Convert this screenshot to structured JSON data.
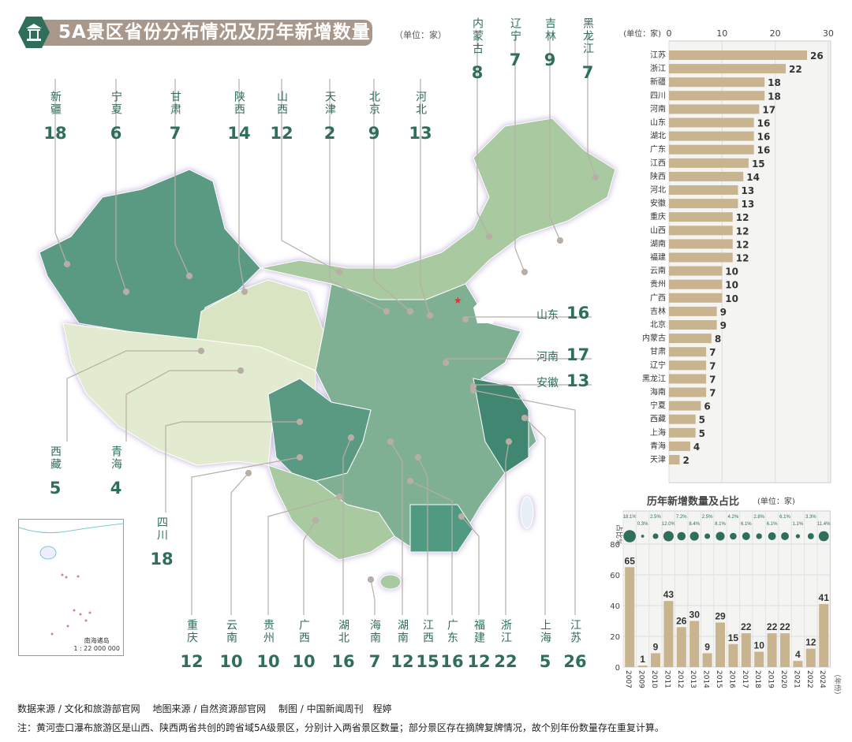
{
  "title": "5A景区省份分布情况及历年新增数量",
  "unit": "（单位：家）",
  "colors": {
    "accent": "#2f6e5a",
    "banner": "#a8978b",
    "bar": "#c9b490",
    "map_dark": "#3f8670",
    "map_mid": "#7fb094",
    "map_light": "#a9c9a0",
    "map_pale": "#e2ead0"
  },
  "map": {
    "top_labels": [
      {
        "name": "新疆",
        "value": "18"
      },
      {
        "name": "宁夏",
        "value": "6"
      },
      {
        "name": "甘肃",
        "value": "7"
      },
      {
        "name": "陕西",
        "value": "14"
      },
      {
        "name": "山西",
        "value": "12"
      },
      {
        "name": "天津",
        "value": "2"
      },
      {
        "name": "北京",
        "value": "9"
      },
      {
        "name": "河北",
        "value": "13"
      }
    ],
    "ne_labels": [
      {
        "name": "内蒙古",
        "value": "8"
      },
      {
        "name": "辽宁",
        "value": "7"
      },
      {
        "name": "吉林",
        "value": "9"
      },
      {
        "name": "黑龙江",
        "value": "7"
      }
    ],
    "right_labels": [
      {
        "name": "山东",
        "value": "16"
      },
      {
        "name": "河南",
        "value": "17"
      },
      {
        "name": "安徽",
        "value": "13"
      }
    ],
    "left_labels": [
      {
        "name": "西藏",
        "value": "5"
      },
      {
        "name": "青海",
        "value": "4"
      },
      {
        "name": "四川",
        "value": "18"
      }
    ],
    "bottom_labels": [
      {
        "name": "重庆",
        "value": "12"
      },
      {
        "name": "云南",
        "value": "10"
      },
      {
        "name": "贵州",
        "value": "10"
      },
      {
        "name": "广西",
        "value": "10"
      },
      {
        "name": "湖北",
        "value": "16"
      },
      {
        "name": "海南",
        "value": "7"
      },
      {
        "name": "湖南",
        "value": "12"
      },
      {
        "name": "江西",
        "value": "15"
      },
      {
        "name": "广东",
        "value": "16"
      },
      {
        "name": "福建",
        "value": "12"
      },
      {
        "name": "浙江",
        "value": "22"
      },
      {
        "name": "上海",
        "value": "5"
      },
      {
        "name": "江苏",
        "value": "26"
      }
    ],
    "inset_title": "南海诸岛",
    "inset_scale": "1 : 22 000 000"
  },
  "chart_data": [
    {
      "type": "bar",
      "orientation": "horizontal",
      "unit": "(单位：家)",
      "xlim": [
        0,
        30
      ],
      "xticks": [
        0,
        10,
        20,
        30
      ],
      "grid": true,
      "categories": [
        "江苏",
        "浙江",
        "新疆",
        "四川",
        "河南",
        "山东",
        "湖北",
        "广东",
        "江西",
        "陕西",
        "河北",
        "安徽",
        "重庆",
        "山西",
        "湖南",
        "福建",
        "云南",
        "贵州",
        "广西",
        "吉林",
        "北京",
        "内蒙古",
        "甘肃",
        "辽宁",
        "黑龙江",
        "海南",
        "宁夏",
        "西藏",
        "上海",
        "青海",
        "天津"
      ],
      "values": [
        26,
        22,
        18,
        18,
        17,
        16,
        16,
        16,
        15,
        14,
        13,
        13,
        12,
        12,
        12,
        12,
        10,
        10,
        10,
        9,
        9,
        8,
        7,
        7,
        7,
        7,
        6,
        5,
        5,
        4,
        2
      ]
    },
    {
      "type": "bar",
      "title": "历年新增数量及占比",
      "unit": "(单位：家)",
      "xlabel": "（年份）",
      "ylabel2": "占比%",
      "ylim": [
        0,
        80
      ],
      "yticks": [
        0,
        20,
        40,
        60,
        80
      ],
      "grid": true,
      "categories": [
        "2007",
        "2009",
        "2010",
        "2011",
        "2012",
        "2013",
        "2014",
        "2015",
        "2016",
        "2017",
        "2018",
        "2019",
        "2020",
        "2021",
        "2022",
        "2024"
      ],
      "values": [
        65,
        1,
        9,
        43,
        26,
        30,
        9,
        29,
        15,
        22,
        10,
        22,
        22,
        4,
        12,
        41
      ],
      "share_percent": [
        "18.1%",
        "0.3%",
        "2.5%",
        "12.0%",
        "7.2%",
        "8.4%",
        "2.5%",
        "8.1%",
        "4.2%",
        "6.1%",
        "2.8%",
        "6.1%",
        "6.1%",
        "1.1%",
        "3.3%",
        "11.4%"
      ],
      "share_values": [
        18.1,
        0.3,
        2.5,
        12.0,
        7.2,
        8.4,
        2.5,
        8.1,
        4.2,
        6.1,
        2.8,
        6.1,
        6.1,
        1.1,
        3.3,
        11.4
      ]
    }
  ],
  "footer": {
    "sources": "数据来源 / 文化和旅游部官网　 地图来源 / 自然资源部官网　 制图 / 中国新闻周刊　程婷",
    "note": "注：黄河壶口瀑布旅游区是山西、陕西两省共创的跨省域5A级景区，分别计入两省景区数量；部分景区存在摘牌复牌情况，故个别年份数量存在重复计算。"
  }
}
